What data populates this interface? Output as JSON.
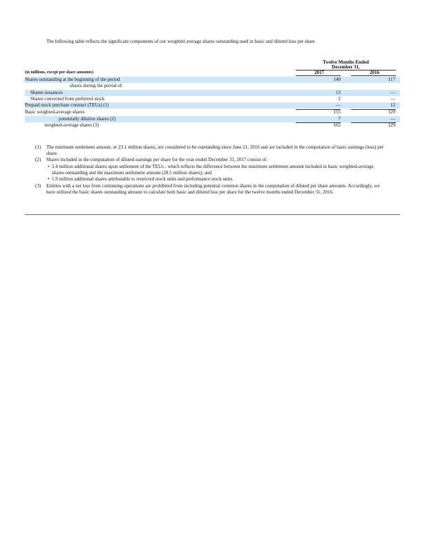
{
  "intro": "The following table reflects the significant components of our weighted average shares outstanding used in basic and diluted loss per share",
  "table": {
    "period_header": "Twelve Months Ended",
    "period_header_2": "December 31,",
    "unit_label": "(in millions, except per share amounts)",
    "columns": [
      "2017",
      "2016"
    ],
    "rows": [
      {
        "label": "Shares outstanding at the beginning of the period",
        "values": [
          140,
          117
        ]
      },
      {
        "label": "shares during the period of:"
      },
      {
        "label": "Shares issuances",
        "values": [
          13,
          "—"
        ]
      },
      {
        "label": "Shares converted from preferred stock",
        "values": [
          2,
          "—"
        ]
      },
      {
        "label": "Prepaid stock purchase contract (TEUs) (1)",
        "values": [
          "—",
          12
        ]
      },
      {
        "label": "Basic weighted-average shares",
        "values": [
          155,
          129
        ]
      },
      {
        "label": "potentially dilutive shares (2)",
        "values": [
          7,
          "—"
        ]
      },
      {
        "label": "weighted-average shares (3)",
        "values": [
          162,
          129
        ]
      }
    ]
  },
  "notes": [
    {
      "number": "(1)",
      "text": "The minimum settlement amount, or 23.1 million shares, are considered to be outstanding since June 21, 2016 and are included in the computation of basic earnings (loss) per share."
    },
    {
      "number": "(2)",
      "text": "Shares included in the computation of diluted earnings per share for the year ended December 31, 2017 consist of:",
      "bullets": [
        "5.4 million additional shares upon settlement of the TEUs - which reflects the difference between the minimum settlement amount included in basic weighted-average shares outstanding and the maximum settlement amount (28.5 million shares); and",
        "1.9 million additional shares attributable to restricted stock units and performance stock units."
      ]
    },
    {
      "number": "(3)",
      "text": "Entities with a net loss from continuing operations are prohibited from including potential common shares in the computation of diluted per share amounts. Accordingly, we have utilized the basic shares outstanding amount to calculate both basic and diluted loss per share for the twelve months ended December 31, 2016."
    }
  ]
}
